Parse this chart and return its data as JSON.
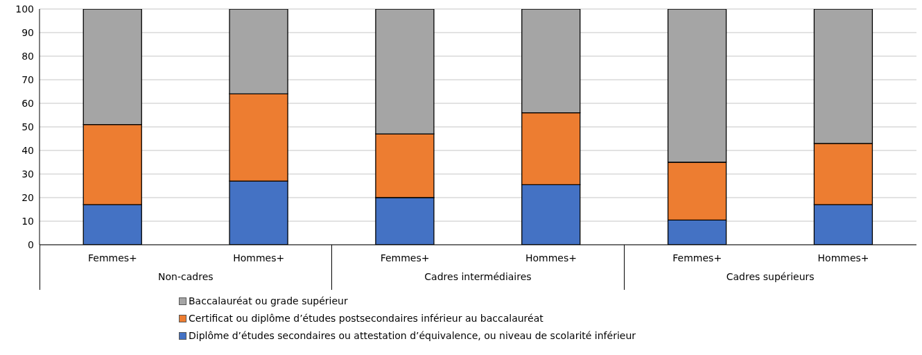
{
  "chart_data": {
    "type": "bar",
    "stacked": true,
    "categories": [
      "Femmes+",
      "Hommes+",
      "Femmes+",
      "Hommes+",
      "Femmes+",
      "Hommes+"
    ],
    "annotations": [
      "Non-cadres",
      "Cadres intermédiaires",
      "Cadres supérieurs"
    ],
    "series": [
      {
        "name": "Diplôme d’études secondaires ou attestation d’équivalence, ou niveau de scolarité inférieur",
        "color": "#4472c4",
        "values": [
          17,
          27,
          20,
          25.5,
          10.5,
          17
        ]
      },
      {
        "name": "Certificat ou diplôme d’études postsecondaires inférieur au baccalauréat",
        "color": "#ed7d31",
        "values": [
          34,
          37,
          27,
          30.5,
          24.5,
          26
        ]
      },
      {
        "name": "Baccalauréat ou grade supérieur",
        "color": "#a5a5a5",
        "values": [
          49,
          36,
          53,
          44,
          65,
          57
        ]
      }
    ],
    "ylim": [
      0,
      100
    ],
    "yticks": [
      0,
      10,
      20,
      30,
      40,
      50,
      60,
      70,
      80,
      90,
      100
    ],
    "grid": "y",
    "legend": "bottom"
  }
}
